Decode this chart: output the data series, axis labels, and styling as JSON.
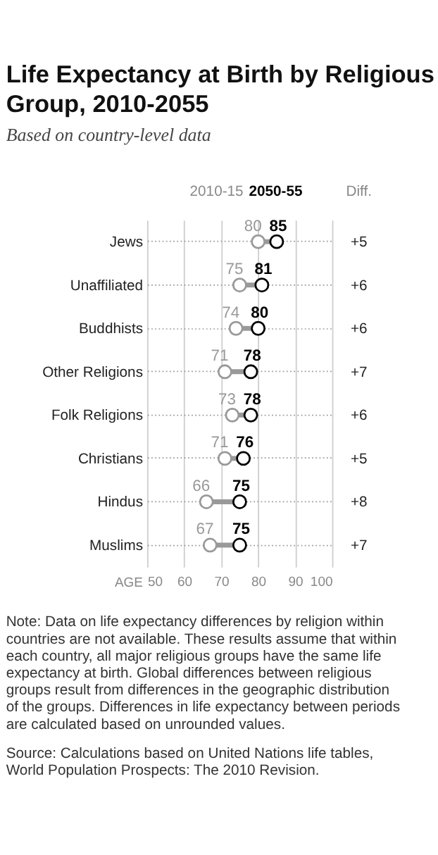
{
  "chart_data": {
    "type": "scatter",
    "orientation": "horizontal",
    "title": "Life Expectancy at Birth by Religious Group, 2010-2055",
    "subtitle": "Based on country-level data",
    "xlabel": "AGE",
    "categories": [
      "Jews",
      "Unaffiliated",
      "Buddhists",
      "Other Religions",
      "Folk Religions",
      "Christians",
      "Hindus",
      "Muslims"
    ],
    "series": [
      {
        "name": "2010-15",
        "color": "#999999",
        "values": [
          80,
          75,
          74,
          71,
          73,
          71,
          66,
          67
        ]
      },
      {
        "name": "2050-55",
        "color": "#000000",
        "values": [
          85,
          81,
          80,
          78,
          78,
          76,
          75,
          75
        ]
      }
    ],
    "xlim": [
      50,
      100
    ],
    "xticks": [
      50,
      60,
      70,
      80,
      90,
      100
    ],
    "grid": true,
    "marker": "circle",
    "data_labels": true,
    "legend": "top",
    "annotations": [
      "Diff.",
      "+5",
      "+6",
      "+6",
      "+7",
      "+6",
      "+5",
      "+8",
      "+7",
      "Note: Data on life expectancy differences by religion within countries are not available. These results assume that within each country, all major religious groups have the same life expectancy at birth. Global differences between religious groups result from differences in the geographic distribution of the groups. Differences in life expectancy between periods are calculated based on unrounded values.",
      "Source: Calculations based on United Nations life tables, World Population Prospects: The 2010 Revision."
    ]
  }
}
